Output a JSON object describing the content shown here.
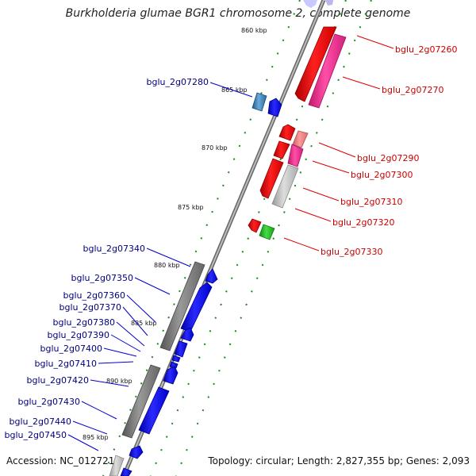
{
  "title": "Burkholderia glumae BGR1 chromosome 2, complete genome",
  "footer": {
    "accession": "Accession: NC_012721",
    "summary": "Topology: circular; Length: 2,827,355 bp; Genes: 2,093"
  },
  "colors": {
    "backbone": "#8a8a8a",
    "forward_gene": "#0000ee",
    "reverse_gene": "#ee0000",
    "pseudo_gene": "#808080",
    "pink_gene": "#ff3399",
    "rrna": "#3a78b0",
    "trna": "#22bb22",
    "tick": "#1a8a1a",
    "label_forward": "#000080",
    "label_reverse": "#cc0000"
  },
  "scale": {
    "unit": "kbp",
    "labels": [
      "860 kbp",
      "865 kbp",
      "870 kbp",
      "875 kbp",
      "880 kbp",
      "885 kbp",
      "890 kbp",
      "895 kbp"
    ]
  },
  "reverse_labels": [
    "bglu_2g07260",
    "bglu_2g07270",
    "bglu_2g07290",
    "bglu_2g07300",
    "bglu_2g07310",
    "bglu_2g07320",
    "bglu_2g07330"
  ],
  "forward_labels": [
    "bglu_2g07280",
    "bglu_2g07340",
    "bglu_2g07350",
    "bglu_2g07360",
    "bglu_2g07370",
    "bglu_2g07380",
    "bglu_2g07390",
    "bglu_2g07400",
    "bglu_2g07410",
    "bglu_2g07420",
    "bglu_2g07430",
    "bglu_2g07440",
    "bglu_2g07450"
  ]
}
